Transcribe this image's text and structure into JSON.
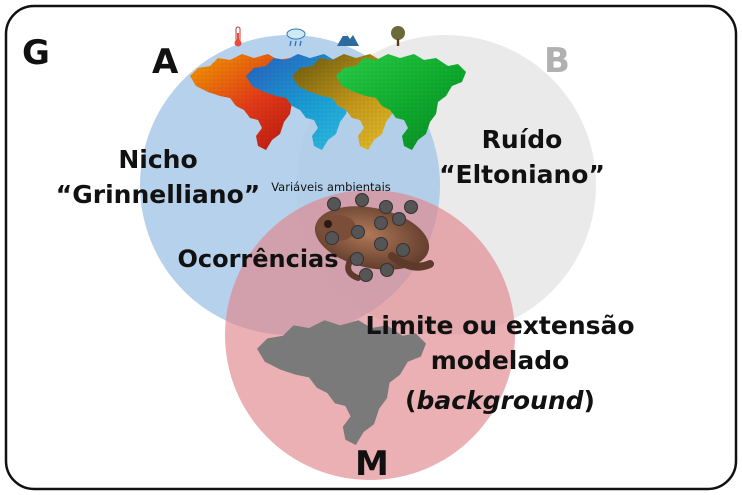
{
  "diagram": {
    "frame_label": "G",
    "circles": {
      "a": {
        "label": "A",
        "fill": "#a9c9e8"
      },
      "b": {
        "label": "B",
        "fill": "#e6e6e6"
      },
      "m": {
        "label": "M",
        "fill": "#e79c9c"
      }
    },
    "text": {
      "grinnell_line1": "Nicho",
      "grinnell_line2": "“Grinnelliano”",
      "elton_line1": "Ruído",
      "elton_line2": "“Eltoniano”",
      "occurrences": "Ocorrências",
      "env_vars": "Variáveis ambientais",
      "limit_line1": "Limite ou extensão",
      "limit_line2": "modelado",
      "limit_paren_open": "(",
      "limit_italic": "background",
      "limit_paren_close": ")"
    },
    "icons": [
      "thermometer-icon",
      "rain-cloud-icon",
      "mountain-icon",
      "tree-icon"
    ],
    "colors": {
      "frame": "#111111",
      "b_label": "#b0b0b0",
      "brazil_gray": "#7a7a7a",
      "occurrence_point": "#555555",
      "frog": "#8a5a44"
    }
  }
}
